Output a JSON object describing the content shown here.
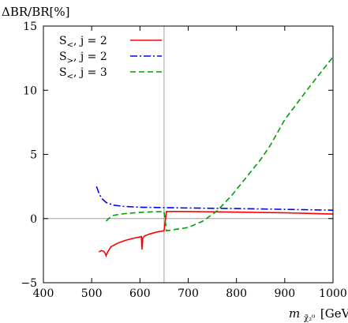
{
  "chart_data": {
    "type": "line",
    "ylabel": "ΔBR/BR[%]",
    "xlabel": "m",
    "xlabel_subscript": "χ̃₂⁰",
    "xlabel_unit": "[GeV]",
    "xlim": [
      400,
      1000
    ],
    "ylim": [
      -5,
      15
    ],
    "xticks": [
      400,
      500,
      600,
      700,
      800,
      900,
      1000
    ],
    "yticks": [
      -5,
      0,
      5,
      10,
      15
    ],
    "xtick_labels": [
      "400",
      "500",
      "600",
      "700",
      "800",
      "900",
      "1000"
    ],
    "ytick_labels": [
      "−5",
      "0",
      "5",
      "10",
      "15"
    ],
    "reference_lines": {
      "y_zero": 0,
      "x_vertical": 650
    },
    "legend_position": "top-left",
    "series": [
      {
        "name": "S<, j = 2",
        "legend_main": "S",
        "legend_sub": "<",
        "legend_rest": ", j = 2",
        "color": "#ff0000",
        "style": "solid",
        "x": [
          515,
          520,
          525,
          528,
          530,
          533,
          540,
          555,
          570,
          585,
          598,
          603,
          604,
          606,
          610,
          620,
          635,
          650,
          655,
          700,
          800,
          900,
          1000
        ],
        "y": [
          -2.6,
          -2.5,
          -2.55,
          -2.7,
          -2.9,
          -2.6,
          -2.2,
          -1.9,
          -1.7,
          -1.55,
          -1.45,
          -1.4,
          -2.4,
          -1.5,
          -1.35,
          -1.2,
          -1.05,
          -0.95,
          0.55,
          0.55,
          0.5,
          0.45,
          0.35
        ]
      },
      {
        "name": "S>, j = 2",
        "legend_main": "S",
        "legend_sub": ">",
        "legend_rest": ", j = 2",
        "color": "#0000ff",
        "style": "dash-dot",
        "x": [
          510,
          515,
          520,
          530,
          545,
          565,
          600,
          650,
          700,
          800,
          900,
          1000
        ],
        "y": [
          2.5,
          2.0,
          1.6,
          1.25,
          1.05,
          0.95,
          0.88,
          0.85,
          0.82,
          0.78,
          0.72,
          0.65
        ]
      },
      {
        "name": "S<, j = 3",
        "legend_main": "S",
        "legend_sub": "<",
        "legend_rest": ", j = 3",
        "color": "#00a000",
        "style": "dashed",
        "x": [
          530,
          535,
          545,
          560,
          580,
          600,
          625,
          650,
          655,
          700,
          730,
          760,
          790,
          820,
          850,
          870,
          900,
          950,
          1000
        ],
        "y": [
          -0.2,
          0.0,
          0.25,
          0.35,
          0.42,
          0.48,
          0.52,
          0.55,
          -0.95,
          -0.7,
          -0.2,
          0.6,
          1.8,
          3.2,
          4.6,
          5.7,
          7.7,
          10.2,
          12.6
        ]
      }
    ]
  }
}
